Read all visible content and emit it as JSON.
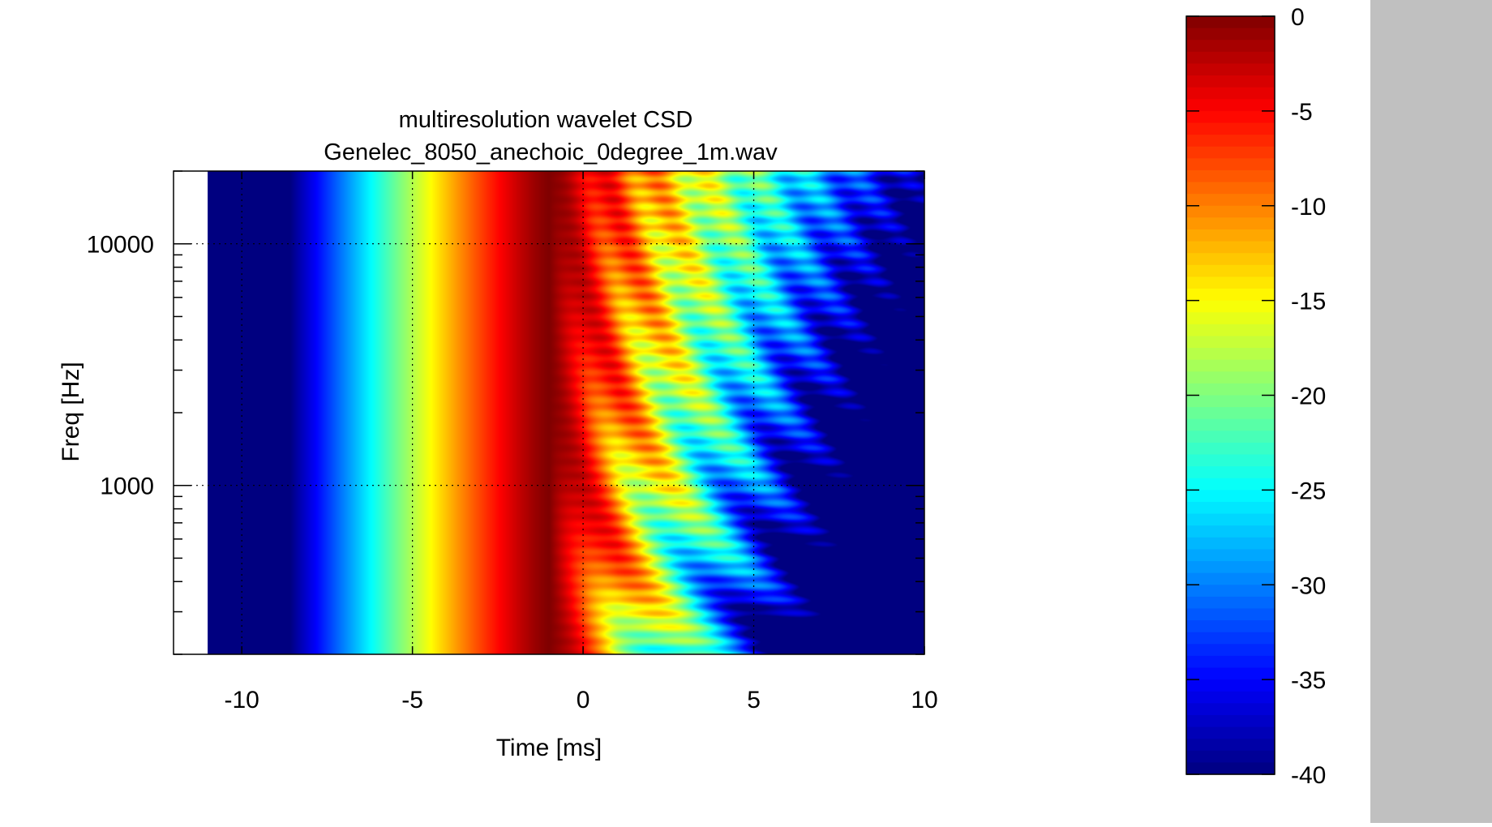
{
  "chart_data": {
    "type": "heatmap",
    "title": "multiresolution wavelet CSD",
    "subtitle": "Genelec_8050_anechoic_0degree_1m.wav",
    "xlabel": "Time [ms]",
    "ylabel": "Freq [Hz]",
    "xlim": [
      -12,
      10
    ],
    "ylim": [
      200,
      20000
    ],
    "yscale": "log",
    "x_ticks": [
      -10,
      -5,
      0,
      5,
      10
    ],
    "y_major_ticks": [
      1000,
      10000
    ],
    "grid": true,
    "data_x_range": [
      -11,
      10
    ],
    "colorbar": {
      "colormap": "jet",
      "range": [
        -40,
        0
      ],
      "ticks": [
        0,
        -5,
        -10,
        -15,
        -20,
        -25,
        -30,
        -35,
        -40
      ],
      "placement": "right"
    },
    "description_values": {
      "peak_time_ms": -1,
      "peak_level_db": 0,
      "floor_level_db": -40
    }
  }
}
